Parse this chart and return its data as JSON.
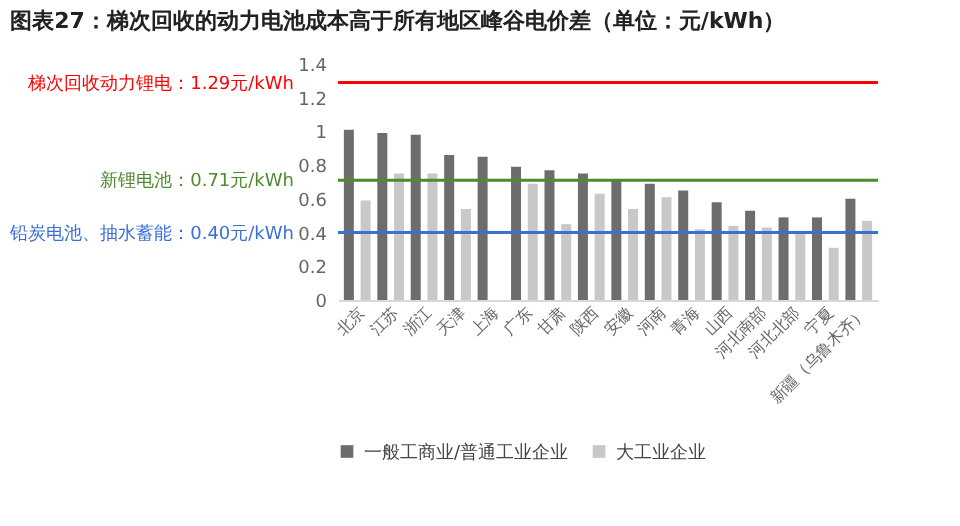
{
  "chart_data": {
    "type": "bar",
    "title": "图表27：梯次回收的动力电池成本高于所有地区峰谷电价差（单位：元/kWh）",
    "categories": [
      "北京",
      "江苏",
      "浙江",
      "天津",
      "上海",
      "广东",
      "甘肃",
      "陕西",
      "安徽",
      "河南",
      "青海",
      "山西",
      "河北南部",
      "河北北部",
      "宁夏",
      "新疆（乌鲁木齐）"
    ],
    "series": [
      {
        "name": "一般工商业/普通工业企业",
        "color": "#6d6d6d",
        "values": [
          1.01,
          0.99,
          0.98,
          0.86,
          0.85,
          0.79,
          0.77,
          0.75,
          0.71,
          0.69,
          0.65,
          0.58,
          0.53,
          0.49,
          0.49,
          0.6
        ]
      },
      {
        "name": "大工业企业",
        "color": "#c8c8c8",
        "values": [
          0.59,
          0.75,
          0.75,
          0.54,
          null,
          0.69,
          0.45,
          0.63,
          0.54,
          0.61,
          0.42,
          0.44,
          0.43,
          0.4,
          0.31,
          0.47
        ]
      }
    ],
    "ylim": [
      0,
      1.4
    ],
    "yticks": [
      0,
      0.2,
      0.4,
      0.6,
      0.8,
      1,
      1.2,
      1.4
    ],
    "ref_lines": [
      {
        "axis": "y",
        "value": 1.29,
        "label": "梯次回收动力锂电：1.29元/kWh",
        "color": "#ff0000"
      },
      {
        "axis": "y",
        "value": 0.71,
        "label": "新锂电池：0.71元/kWh",
        "color": "#4e8a2e"
      },
      {
        "axis": "y",
        "value": 0.4,
        "label": "铅炭电池、抽水蓄能：0.40元/kWh",
        "color": "#3a6fd8"
      }
    ],
    "grid": false,
    "legend": "bottom"
  }
}
